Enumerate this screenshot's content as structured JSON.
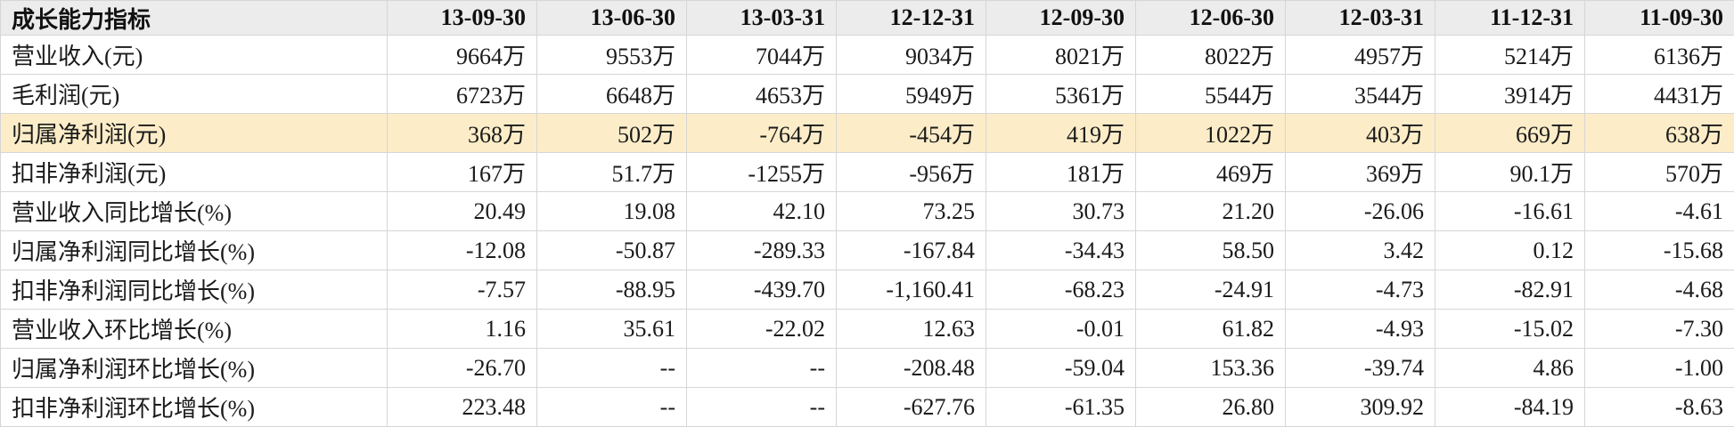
{
  "header": {
    "label": "成长能力指标",
    "dates": [
      "13-09-30",
      "13-06-30",
      "13-03-31",
      "12-12-31",
      "12-09-30",
      "12-06-30",
      "12-03-31",
      "11-12-31",
      "11-09-30"
    ]
  },
  "rows": [
    {
      "label": "营业收入(元)",
      "values": [
        "9664万",
        "9553万",
        "7044万",
        "9034万",
        "8021万",
        "8022万",
        "4957万",
        "5214万",
        "6136万"
      ]
    },
    {
      "label": "毛利润(元)",
      "values": [
        "6723万",
        "6648万",
        "4653万",
        "5949万",
        "5361万",
        "5544万",
        "3544万",
        "3914万",
        "4431万"
      ]
    },
    {
      "label": "归属净利润(元)",
      "values": [
        "368万",
        "502万",
        "-764万",
        "-454万",
        "419万",
        "1022万",
        "403万",
        "669万",
        "638万"
      ],
      "highlight": true
    },
    {
      "label": "扣非净利润(元)",
      "values": [
        "167万",
        "51.7万",
        "-1255万",
        "-956万",
        "181万",
        "469万",
        "369万",
        "90.1万",
        "570万"
      ]
    },
    {
      "label": "营业收入同比增长(%)",
      "values": [
        "20.49",
        "19.08",
        "42.10",
        "73.25",
        "30.73",
        "21.20",
        "-26.06",
        "-16.61",
        "-4.61"
      ]
    },
    {
      "label": "归属净利润同比增长(%)",
      "values": [
        "-12.08",
        "-50.87",
        "-289.33",
        "-167.84",
        "-34.43",
        "58.50",
        "3.42",
        "0.12",
        "-15.68"
      ]
    },
    {
      "label": "扣非净利润同比增长(%)",
      "values": [
        "-7.57",
        "-88.95",
        "-439.70",
        "-1,160.41",
        "-68.23",
        "-24.91",
        "-4.73",
        "-82.91",
        "-4.68"
      ]
    },
    {
      "label": "营业收入环比增长(%)",
      "values": [
        "1.16",
        "35.61",
        "-22.02",
        "12.63",
        "-0.01",
        "61.82",
        "-4.93",
        "-15.02",
        "-7.30"
      ]
    },
    {
      "label": "归属净利润环比增长(%)",
      "values": [
        "-26.70",
        "--",
        "--",
        "-208.48",
        "-59.04",
        "153.36",
        "-39.74",
        "4.86",
        "-1.00"
      ]
    },
    {
      "label": "扣非净利润环比增长(%)",
      "values": [
        "223.48",
        "--",
        "--",
        "-627.76",
        "-61.35",
        "26.80",
        "309.92",
        "-84.19",
        "-8.63"
      ]
    }
  ]
}
